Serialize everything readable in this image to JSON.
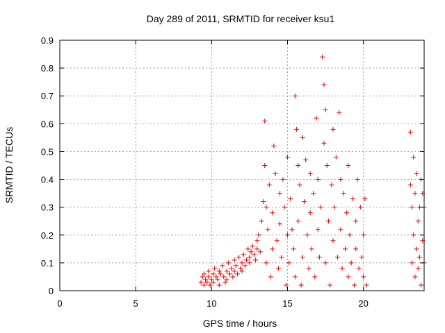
{
  "chart_data": {
    "type": "scatter",
    "title": "Day 289 of 2011, SRMTID for receiver ksu1",
    "xlabel": "GPS time / hours",
    "ylabel": "SRMTID / TECUs",
    "xlim": [
      0,
      24
    ],
    "ylim": [
      0,
      0.9
    ],
    "xticks": [
      0,
      5,
      10,
      15,
      20
    ],
    "xtick_labels": [
      "0",
      "5",
      "10",
      "15",
      "20"
    ],
    "yticks": [
      0,
      0.1,
      0.2,
      0.3,
      0.4,
      0.5,
      0.6,
      0.7,
      0.8,
      0.9
    ],
    "ytick_labels": [
      "0",
      "0.1",
      "0.2",
      "0.3",
      "0.4",
      "0.5",
      "0.6",
      "0.7",
      "0.8",
      "0.9"
    ],
    "grid": true,
    "marker": "+",
    "series_color": "#e00000",
    "series": [
      {
        "name": "ksu1",
        "x": [
          9.3,
          9.4,
          9.5,
          9.5,
          9.6,
          9.7,
          9.8,
          9.8,
          9.9,
          10.0,
          10.1,
          10.1,
          10.2,
          10.3,
          10.4,
          10.5,
          10.5,
          10.6,
          10.7,
          10.8,
          10.9,
          11.0,
          11.0,
          11.1,
          11.2,
          11.3,
          11.4,
          11.5,
          11.5,
          11.6,
          11.7,
          11.8,
          11.9,
          12.0,
          12.0,
          12.1,
          12.2,
          12.3,
          12.4,
          12.5,
          12.5,
          12.6,
          12.7,
          12.8,
          12.9,
          13.0,
          13.0,
          13.1,
          13.2,
          13.3,
          13.4,
          13.5,
          13.5,
          13.6,
          13.6,
          13.7,
          13.8,
          13.9,
          14.0,
          14.0,
          14.1,
          14.2,
          14.3,
          14.4,
          14.5,
          14.5,
          14.6,
          14.7,
          14.8,
          14.9,
          15.0,
          15.0,
          15.1,
          15.2,
          15.3,
          15.4,
          15.5,
          15.5,
          15.6,
          15.7,
          15.7,
          15.8,
          15.9,
          16.0,
          16.0,
          16.1,
          16.2,
          16.3,
          16.4,
          16.5,
          16.5,
          16.6,
          16.7,
          16.8,
          16.9,
          17.0,
          17.0,
          17.1,
          17.2,
          17.3,
          17.4,
          17.4,
          17.5,
          17.5,
          17.6,
          17.7,
          17.8,
          17.9,
          18.0,
          18.0,
          18.1,
          18.2,
          18.3,
          18.4,
          18.5,
          18.5,
          18.6,
          18.7,
          18.8,
          18.9,
          19.0,
          19.0,
          19.1,
          19.2,
          19.3,
          19.4,
          19.5,
          19.5,
          19.6,
          19.7,
          19.8,
          19.9,
          20.0,
          20.0,
          20.1,
          20.2,
          23.1,
          23.1,
          23.2,
          23.2,
          23.3,
          23.3,
          23.4,
          23.4,
          23.5,
          23.5,
          23.6,
          23.6,
          23.7,
          23.7,
          23.8,
          23.8,
          23.9,
          23.9,
          24.0,
          24.0
        ],
        "y": [
          0.03,
          0.05,
          0.02,
          0.06,
          0.04,
          0.03,
          0.05,
          0.07,
          0.02,
          0.04,
          0.06,
          0.03,
          0.08,
          0.05,
          0.04,
          0.07,
          0.02,
          0.06,
          0.09,
          0.05,
          0.03,
          0.07,
          0.04,
          0.1,
          0.06,
          0.08,
          0.05,
          0.11,
          0.07,
          0.09,
          0.06,
          0.12,
          0.08,
          0.1,
          0.07,
          0.13,
          0.09,
          0.11,
          0.15,
          0.12,
          0.1,
          0.14,
          0.16,
          0.13,
          0.11,
          0.18,
          0.15,
          0.2,
          0.14,
          0.25,
          0.32,
          0.61,
          0.45,
          0.3,
          0.1,
          0.22,
          0.38,
          0.05,
          0.15,
          0.28,
          0.52,
          0.42,
          0.18,
          0.08,
          0.35,
          0.24,
          0.12,
          0.4,
          0.3,
          0.02,
          0.2,
          0.48,
          0.1,
          0.33,
          0.22,
          0.15,
          0.7,
          0.05,
          0.58,
          0.45,
          0.25,
          0.38,
          0.02,
          0.12,
          0.55,
          0.32,
          0.47,
          0.2,
          0.08,
          0.42,
          0.28,
          0.15,
          0.35,
          0.05,
          0.62,
          0.22,
          0.4,
          0.12,
          0.3,
          0.84,
          0.74,
          0.53,
          0.65,
          0.1,
          0.45,
          0.25,
          0.02,
          0.38,
          0.18,
          0.58,
          0.3,
          0.48,
          0.12,
          0.64,
          0.22,
          0.4,
          0.08,
          0.35,
          0.15,
          0.28,
          0.05,
          0.45,
          0.2,
          0.1,
          0.33,
          0.02,
          0.25,
          0.15,
          0.4,
          0.08,
          0.3,
          0.12,
          0.2,
          0.05,
          0.33,
          0.02,
          0.57,
          0.38,
          0.3,
          0.1,
          0.48,
          0.2,
          0.05,
          0.35,
          0.15,
          0.42,
          0.25,
          0.08,
          0.3,
          0.12,
          0.4,
          0.02,
          0.18,
          0.35,
          0.1,
          0.3
        ]
      }
    ]
  }
}
